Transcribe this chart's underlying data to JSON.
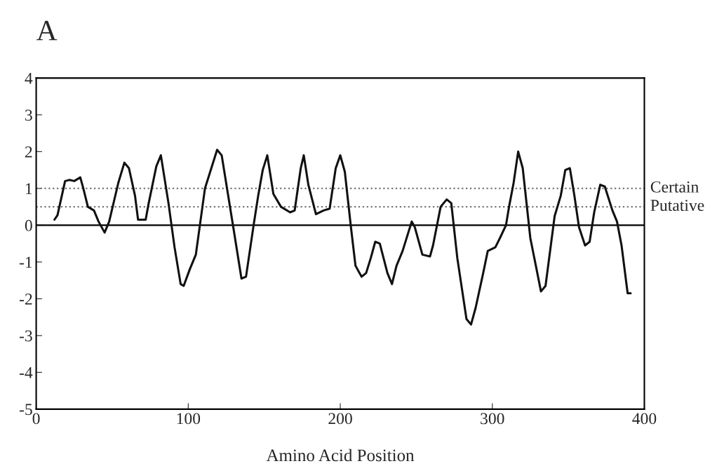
{
  "chart_data": {
    "type": "line",
    "title": "A",
    "xlabel": "Amino Acid Position",
    "xlim": [
      0,
      400
    ],
    "xticks": [
      0,
      100,
      200,
      300,
      400
    ],
    "ylim": [
      -5,
      4
    ],
    "yticks": [
      -5,
      -4,
      -3,
      -2,
      -1,
      0,
      1,
      2,
      3,
      4
    ],
    "grid": false,
    "legend": false,
    "marker": "none",
    "line_style": "solid",
    "ref_lines": [
      {
        "axis": "y",
        "value": 1,
        "label": "Certain",
        "color": "#777777",
        "line_style": "dotted"
      },
      {
        "axis": "y",
        "value": 0.5,
        "label": "Putative",
        "color": "#777777",
        "line_style": "dotted"
      },
      {
        "axis": "y",
        "value": 0,
        "color": "#000000",
        "line_style": "solid"
      }
    ],
    "series": [
      {
        "color": "#111111",
        "x": [
          12,
          14,
          19,
          22,
          25,
          29,
          31,
          34,
          38,
          41,
          45,
          48,
          54,
          58,
          61,
          65,
          67,
          72,
          74,
          79,
          82,
          87,
          91,
          95,
          97,
          101,
          105,
          111,
          119,
          122,
          130,
          135,
          138,
          143,
          146,
          149,
          152,
          156,
          161,
          167,
          170,
          174,
          176,
          179,
          184,
          189,
          193,
          197,
          200,
          203,
          207,
          210,
          214,
          217,
          220,
          223,
          226,
          231,
          234,
          237,
          241,
          247,
          249,
          254,
          259,
          261,
          266,
          270,
          273,
          277,
          283,
          286,
          289,
          294,
          297,
          302,
          305,
          309,
          311,
          314,
          317,
          320,
          325,
          332,
          335,
          341,
          345,
          348,
          351,
          354,
          357,
          361,
          364,
          367,
          371,
          374,
          379,
          382,
          385,
          389,
          391
        ],
        "values": [
          0.15,
          0.27,
          1.2,
          1.23,
          1.2,
          1.3,
          1.0,
          0.5,
          0.4,
          0.1,
          -0.2,
          0.1,
          1.15,
          1.7,
          1.55,
          0.8,
          0.15,
          0.15,
          0.6,
          1.6,
          1.9,
          0.6,
          -0.6,
          -1.6,
          -1.65,
          -1.2,
          -0.8,
          1.0,
          2.05,
          1.9,
          -0.15,
          -1.45,
          -1.4,
          0,
          0.8,
          1.5,
          1.9,
          0.85,
          0.5,
          0.35,
          0.4,
          1.55,
          1.9,
          1.1,
          0.3,
          0.4,
          0.45,
          1.55,
          1.9,
          1.45,
          -0.05,
          -1.1,
          -1.4,
          -1.3,
          -0.9,
          -0.45,
          -0.5,
          -1.3,
          -1.6,
          -1.1,
          -0.7,
          0.1,
          -0.05,
          -0.8,
          -0.85,
          -0.55,
          0.5,
          0.7,
          0.6,
          -0.9,
          -2.55,
          -2.7,
          -2.25,
          -1.3,
          -0.7,
          -0.6,
          -0.35,
          0,
          0.5,
          1.15,
          2.0,
          1.55,
          -0.35,
          -1.8,
          -1.65,
          0.25,
          0.8,
          1.5,
          1.55,
          0.8,
          -0.05,
          -0.55,
          -0.45,
          0.35,
          1.1,
          1.05,
          0.4,
          0.1,
          -0.55,
          -1.85,
          -1.85
        ]
      }
    ]
  }
}
